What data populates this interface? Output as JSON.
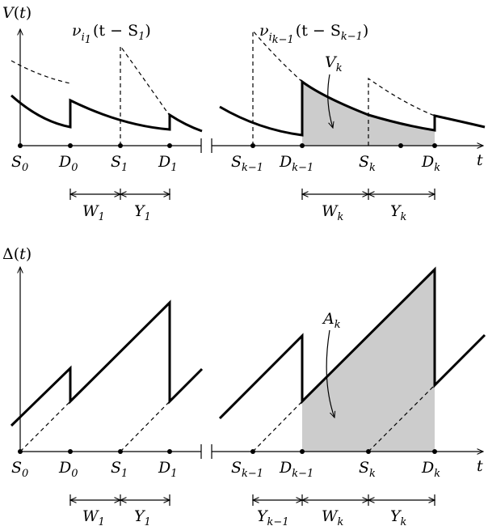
{
  "top_plot": {
    "ylabel": {
      "name": "V",
      "open": "(",
      "var": "t",
      "close": ")"
    },
    "arrival_label_1": {
      "nu": "ν",
      "i": "i",
      "sub1": "1",
      "expr": "(t − S",
      "sub2": "1",
      "close": ")"
    },
    "arrival_label_2": {
      "nu": "ν",
      "i": "i",
      "sub1": "k−1",
      "expr": "(t − S",
      "sub2": "k−1",
      "close": ")"
    },
    "area_label": {
      "name": "V",
      "sub": "k"
    }
  },
  "bottom_plot": {
    "ylabel": {
      "name": "Δ",
      "open": "(",
      "var": "t",
      "close": ")"
    },
    "area_label": {
      "name": "A",
      "sub": "k"
    }
  },
  "time_axis": {
    "axis_var": "t",
    "ticks": [
      {
        "name": "S",
        "sub": "0"
      },
      {
        "name": "D",
        "sub": "0"
      },
      {
        "name": "S",
        "sub": "1"
      },
      {
        "name": "D",
        "sub": "1"
      },
      {
        "name": "S",
        "sub": "k−1"
      },
      {
        "name": "D",
        "sub": "k−1"
      },
      {
        "name": "S",
        "sub": "k"
      },
      {
        "name": "D",
        "sub": "k"
      }
    ]
  },
  "intervals_top": [
    {
      "name": "W",
      "sub": "1"
    },
    {
      "name": "Y",
      "sub": "1"
    },
    {
      "name": "W",
      "sub": "k"
    },
    {
      "name": "Y",
      "sub": "k"
    }
  ],
  "intervals_bottom": [
    {
      "name": "W",
      "sub": "1"
    },
    {
      "name": "Y",
      "sub": "1"
    },
    {
      "name": "Y",
      "sub": "k−1"
    },
    {
      "name": "W",
      "sub": "k"
    },
    {
      "name": "Y",
      "sub": "k"
    }
  ]
}
